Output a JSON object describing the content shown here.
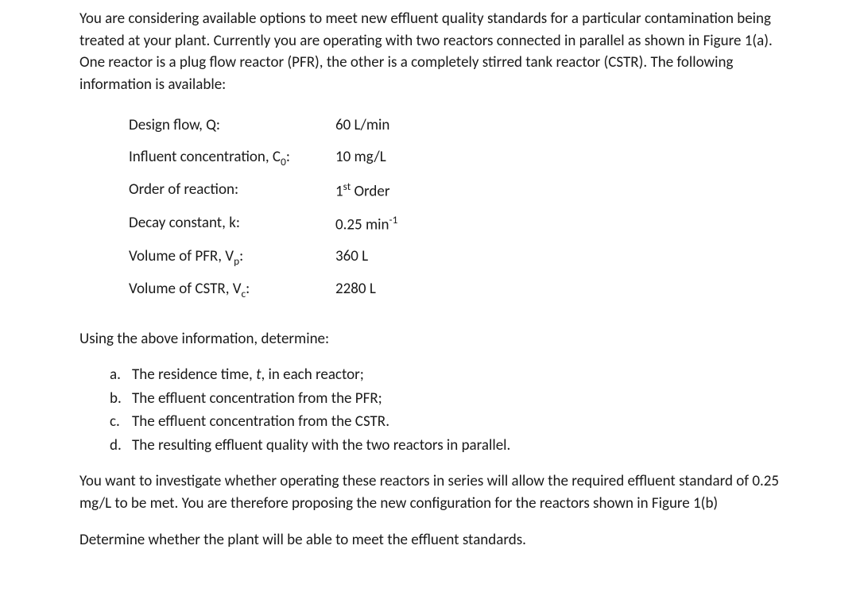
{
  "intro": "You are considering available options to meet new effluent quality standards for a particular contamination being treated at your plant. Currently you are operating with two reactors connected in parallel as shown in Figure 1(a).  One reactor is a plug flow reactor (PFR), the other is a completely stirred tank reactor (CSTR).  The following information is available:",
  "params": [
    {
      "label_pre": "Design flow, Q:",
      "value": "60 L/min"
    },
    {
      "label_pre": "Influent concentration, C",
      "label_sub": "0",
      "label_post": ":",
      "value": "10 mg/L"
    },
    {
      "label_pre": "Order of reaction:",
      "value_pre": "1",
      "value_sup": "st",
      "value_post": " Order"
    },
    {
      "label_pre": "Decay constant, k:",
      "value_pre": " 0.25 min",
      "value_sup": "-1"
    },
    {
      "label_pre": "Volume of PFR, V",
      "label_sub": "p",
      "label_post": ":",
      "value": "360 L"
    },
    {
      "label_pre": "Volume of CSTR, V",
      "label_sub": "c",
      "label_post": ":",
      "value": "2280 L"
    }
  ],
  "lead": "Using the above information, determine:",
  "list": [
    {
      "m": "a.",
      "t_pre": "The residence time, ",
      "t_i": "t",
      "t_post": ", in each reactor;"
    },
    {
      "m": "b.",
      "t_pre": "The effluent concentration from the PFR;"
    },
    {
      "m": "c.",
      "t_pre": "The effluent concentration from the CSTR."
    },
    {
      "m": "d.",
      "t_pre": "The resulting effluent quality with the two reactors in parallel."
    }
  ],
  "para2": "You want to investigate whether operating these reactors in series will allow the required effluent standard of 0.25 mg/L to be met.  You are therefore proposing the new configuration for the reactors shown in Figure 1(b)",
  "para3": "Determine whether the plant will be able to meet the effluent standards."
}
